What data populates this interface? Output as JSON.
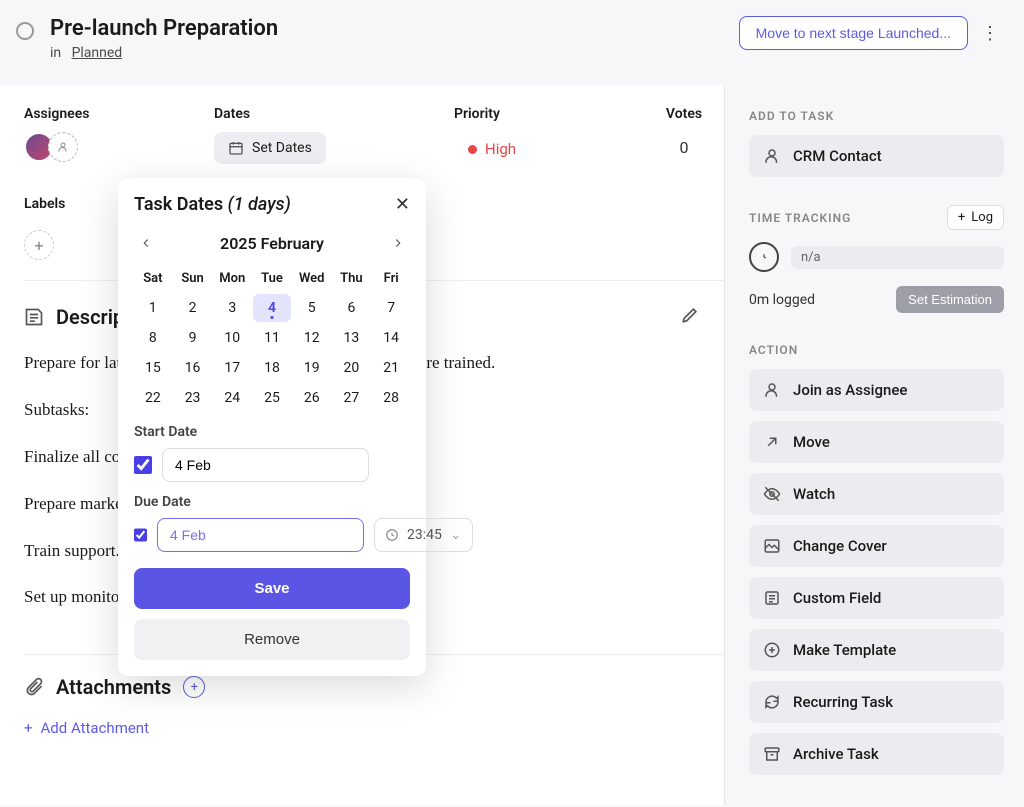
{
  "header": {
    "title": "Pre-launch Preparation",
    "in_label": "in",
    "stage": "Planned",
    "move_button": "Move to next stage Launched..."
  },
  "fields": {
    "assignees_label": "Assignees",
    "dates_label": "Dates",
    "set_dates": "Set Dates",
    "priority_label": "Priority",
    "priority_value": "High",
    "priority_color": "#e84545",
    "votes_label": "Votes",
    "votes_value": "0",
    "labels_label": "Labels"
  },
  "description": {
    "title": "Description",
    "p1": "Prepare for launch. Ensure all systems are ready and staff are trained.",
    "p2": "Subtasks:",
    "p3": "Finalize all content.",
    "p4": "Prepare marketing.",
    "p5": "Train support.",
    "p6": "Set up monitoring."
  },
  "attachments": {
    "title": "Attachments",
    "add": "Add Attachment"
  },
  "sidebar": {
    "add_to_task": "ADD TO TASK",
    "crm_contact": "CRM Contact",
    "time_tracking": "TIME TRACKING",
    "log": "Log",
    "na": "n/a",
    "logged": "0m logged",
    "set_estimation": "Set Estimation",
    "action": "ACTION",
    "actions": {
      "join": "Join as Assignee",
      "move": "Move",
      "watch": "Watch",
      "cover": "Change Cover",
      "custom_field": "Custom Field",
      "template": "Make Template",
      "recurring": "Recurring Task",
      "archive": "Archive Task"
    }
  },
  "datepicker": {
    "title": "Task Dates",
    "days_suffix": "(1 days)",
    "month": "2025 February",
    "dow": [
      "Sat",
      "Sun",
      "Mon",
      "Tue",
      "Wed",
      "Thu",
      "Fri"
    ],
    "weeks": [
      [
        "1",
        "2",
        "3",
        "4",
        "5",
        "6",
        "7"
      ],
      [
        "8",
        "9",
        "10",
        "11",
        "12",
        "13",
        "14"
      ],
      [
        "15",
        "16",
        "17",
        "18",
        "19",
        "20",
        "21"
      ],
      [
        "22",
        "23",
        "24",
        "25",
        "26",
        "27",
        "28"
      ]
    ],
    "selected_day": "4",
    "start_label": "Start Date",
    "start_value": "4 Feb",
    "start_checked": true,
    "due_label": "Due Date",
    "due_value": "4 Feb",
    "due_checked": true,
    "due_time": "23:45",
    "save": "Save",
    "remove": "Remove"
  },
  "colors": {
    "primary": "#5b55e5",
    "outline": "#5b5be5",
    "side_bg": "#ececf0"
  }
}
